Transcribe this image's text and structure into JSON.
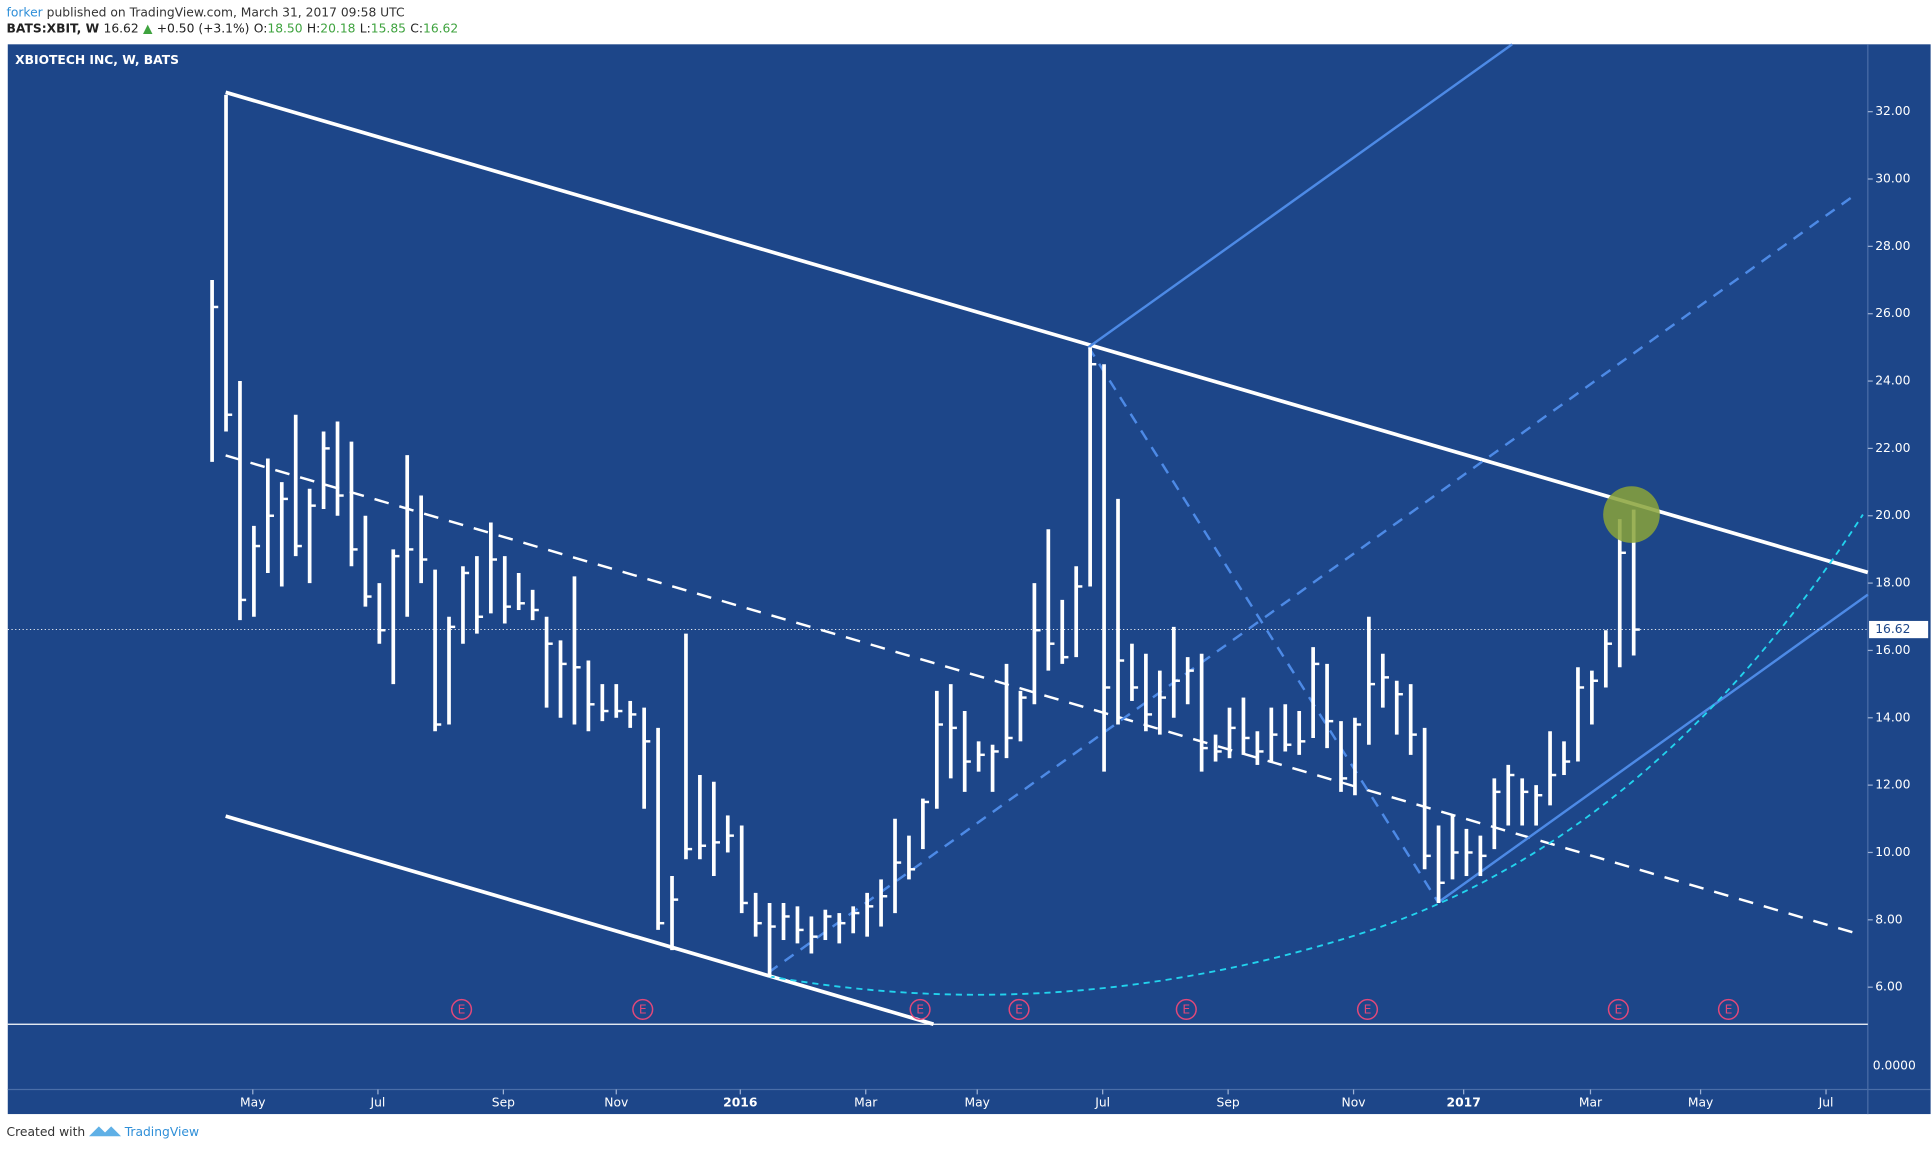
{
  "header": {
    "author": "forker",
    "published": "published on TradingView.com, March 31, 2017 09:58 UTC",
    "symbol": "BATS:XBIT, W",
    "last": "16.62",
    "arrow": "▲",
    "change": "+0.50 (+3.1%)",
    "ohlc": [
      {
        "label": "O:",
        "value": "18.50"
      },
      {
        "label": "H:",
        "value": "20.18"
      },
      {
        "label": "L:",
        "value": "15.85"
      },
      {
        "label": "C:",
        "value": "16.62"
      }
    ]
  },
  "chart_data": {
    "type": "ohlc",
    "title": "XBIOTECH INC, W, BATS",
    "color": "#ffffff",
    "grid": false,
    "high": [
      27,
      32.5,
      24,
      19.7,
      21.7,
      21,
      23,
      20.8,
      22.5,
      22.8,
      22.2,
      20,
      18,
      19,
      21.8,
      20.6,
      18.4,
      17,
      18.5,
      18.8,
      19.8,
      18.8,
      18.3,
      17.8,
      17,
      16.3,
      18.2,
      15.7,
      15,
      15,
      14.5,
      14.3,
      13.7,
      9.3,
      16.5,
      12.3,
      12.1,
      11.1,
      10.8,
      8.8,
      8.5,
      8.5,
      8.4,
      8.1,
      8.3,
      8.2,
      8.4,
      8.8,
      9.2,
      11,
      10.5,
      11.6,
      14.8,
      15,
      14.2,
      13.3,
      13.2,
      15.6,
      14.8,
      18,
      19.6,
      17.5,
      18.5,
      25,
      24.5,
      20.5,
      16.2,
      15.9,
      15.4,
      16.7,
      15.8,
      15.9,
      13.5,
      14.3,
      14.6,
      13.6,
      14.3,
      14.4,
      14.2,
      16.1,
      15.6,
      13.9,
      14,
      17,
      15.9,
      15.1,
      15,
      13.7,
      10.8,
      11.1,
      10.7,
      10.5,
      12.2,
      12.6,
      12.2,
      12,
      13.6,
      13.3,
      15.5,
      15.4,
      16.6,
      19.9,
      20.18
    ],
    "low": [
      21.6,
      22.5,
      16.9,
      17,
      18.3,
      17.9,
      18.8,
      18,
      20.2,
      20,
      18.5,
      17.3,
      16.2,
      15,
      17,
      18,
      13.6,
      13.8,
      16.2,
      16.5,
      17.1,
      16.8,
      17.2,
      16.9,
      14.3,
      14,
      13.8,
      13.6,
      13.9,
      14,
      13.7,
      11.3,
      7.7,
      7.1,
      9.8,
      9.8,
      9.3,
      10,
      8.2,
      7.5,
      6.3,
      7.4,
      7.3,
      7,
      7.4,
      7.3,
      7.6,
      7.5,
      7.8,
      8.2,
      9.2,
      10.1,
      11.3,
      12.2,
      11.8,
      12.4,
      11.8,
      12.8,
      13.3,
      14.4,
      15.4,
      15.6,
      15.8,
      17.9,
      12.4,
      13.8,
      14.5,
      13.6,
      13.5,
      14,
      14.4,
      12.4,
      12.7,
      12.8,
      12.9,
      12.6,
      12.7,
      13,
      12.9,
      13.4,
      13.1,
      11.8,
      11.7,
      13.2,
      14.3,
      13.5,
      12.9,
      9.5,
      8.5,
      9.2,
      9.3,
      9.3,
      10.1,
      10.8,
      10.8,
      10.8,
      11.4,
      12.3,
      12.7,
      13.8,
      14.9,
      15.5,
      15.85
    ],
    "close": [
      26.2,
      23,
      17.5,
      19.1,
      20,
      20.5,
      19.1,
      20.3,
      22,
      20.6,
      19,
      17.6,
      16.6,
      18.8,
      19,
      18.7,
      13.8,
      16.7,
      18.3,
      17,
      18.7,
      17.3,
      17.4,
      17.2,
      16.2,
      15.6,
      15.5,
      14.4,
      14.2,
      14.2,
      14.1,
      13.3,
      7.9,
      8.6,
      10.1,
      10.2,
      10.3,
      10.5,
      8.5,
      7.9,
      7.8,
      8.1,
      7.7,
      7.5,
      8.1,
      7.9,
      8.2,
      8.4,
      8.7,
      9.7,
      9.5,
      11.5,
      13.8,
      13.7,
      12.7,
      12.9,
      13,
      13.4,
      14.6,
      16.6,
      16.2,
      15.8,
      17.9,
      24.5,
      14.9,
      15.7,
      14.9,
      14.1,
      14.6,
      15.1,
      15.4,
      13.1,
      13,
      13.7,
      13.4,
      13,
      13.5,
      13.2,
      13.3,
      15.6,
      13.9,
      12.2,
      13.8,
      15,
      15.2,
      14.7,
      13.5,
      9.9,
      9.1,
      10,
      10,
      9.9,
      11.8,
      12.3,
      11.8,
      11.7,
      12.3,
      12.7,
      14.9,
      15.1,
      16.2,
      18.9,
      16.62
    ],
    "xlim": [
      -14.66,
      118.8
    ],
    "xticks": [
      {
        "value": 2.92,
        "label": "May"
      },
      {
        "value": 11.9,
        "label": "Jul"
      },
      {
        "value": 20.9,
        "label": "Sep"
      },
      {
        "value": 29.0,
        "label": "Nov"
      },
      {
        "value": 37.9,
        "label": "2016"
      },
      {
        "value": 46.9,
        "label": "Mar"
      },
      {
        "value": 54.9,
        "label": "May"
      },
      {
        "value": 63.9,
        "label": "Jul"
      },
      {
        "value": 72.9,
        "label": "Sep"
      },
      {
        "value": 81.9,
        "label": "Nov"
      },
      {
        "value": 89.8,
        "label": "2017"
      },
      {
        "value": 98.9,
        "label": "Mar"
      },
      {
        "value": 106.8,
        "label": "May"
      },
      {
        "value": 115.8,
        "label": "Jul"
      }
    ],
    "ylim": [
      4.9,
      34
    ],
    "yticks": [
      {
        "value": 6,
        "label": "6.00"
      },
      {
        "value": 8,
        "label": "8.00"
      },
      {
        "value": 10,
        "label": "10.00"
      },
      {
        "value": 12,
        "label": "12.00"
      },
      {
        "value": 14,
        "label": "14.00"
      },
      {
        "value": 16,
        "label": "16.00"
      },
      {
        "value": 18,
        "label": "18.00"
      },
      {
        "value": 20,
        "label": "20.00"
      },
      {
        "value": 22,
        "label": "22.00"
      },
      {
        "value": 24,
        "label": "24.00"
      },
      {
        "value": 26,
        "label": "26.00"
      },
      {
        "value": 28,
        "label": "28.00"
      },
      {
        "value": 30,
        "label": "30.00"
      },
      {
        "value": 32,
        "label": "32.00"
      }
    ],
    "lower_pane_ticks": [
      {
        "value": 0,
        "label": "0.0000"
      }
    ],
    "events": [
      {
        "label": "E",
        "x": 17.9
      },
      {
        "label": "E",
        "x": 30.9
      },
      {
        "label": "E",
        "x": 50.8
      },
      {
        "label": "E",
        "x": 57.9
      },
      {
        "label": "E",
        "x": 69.9
      },
      {
        "label": "E",
        "x": 82.9
      },
      {
        "label": "E",
        "x": 100.9
      },
      {
        "label": "E",
        "x": 108.8
      }
    ]
  },
  "footer": {
    "created": "Created with",
    "brand": "TradingView"
  }
}
